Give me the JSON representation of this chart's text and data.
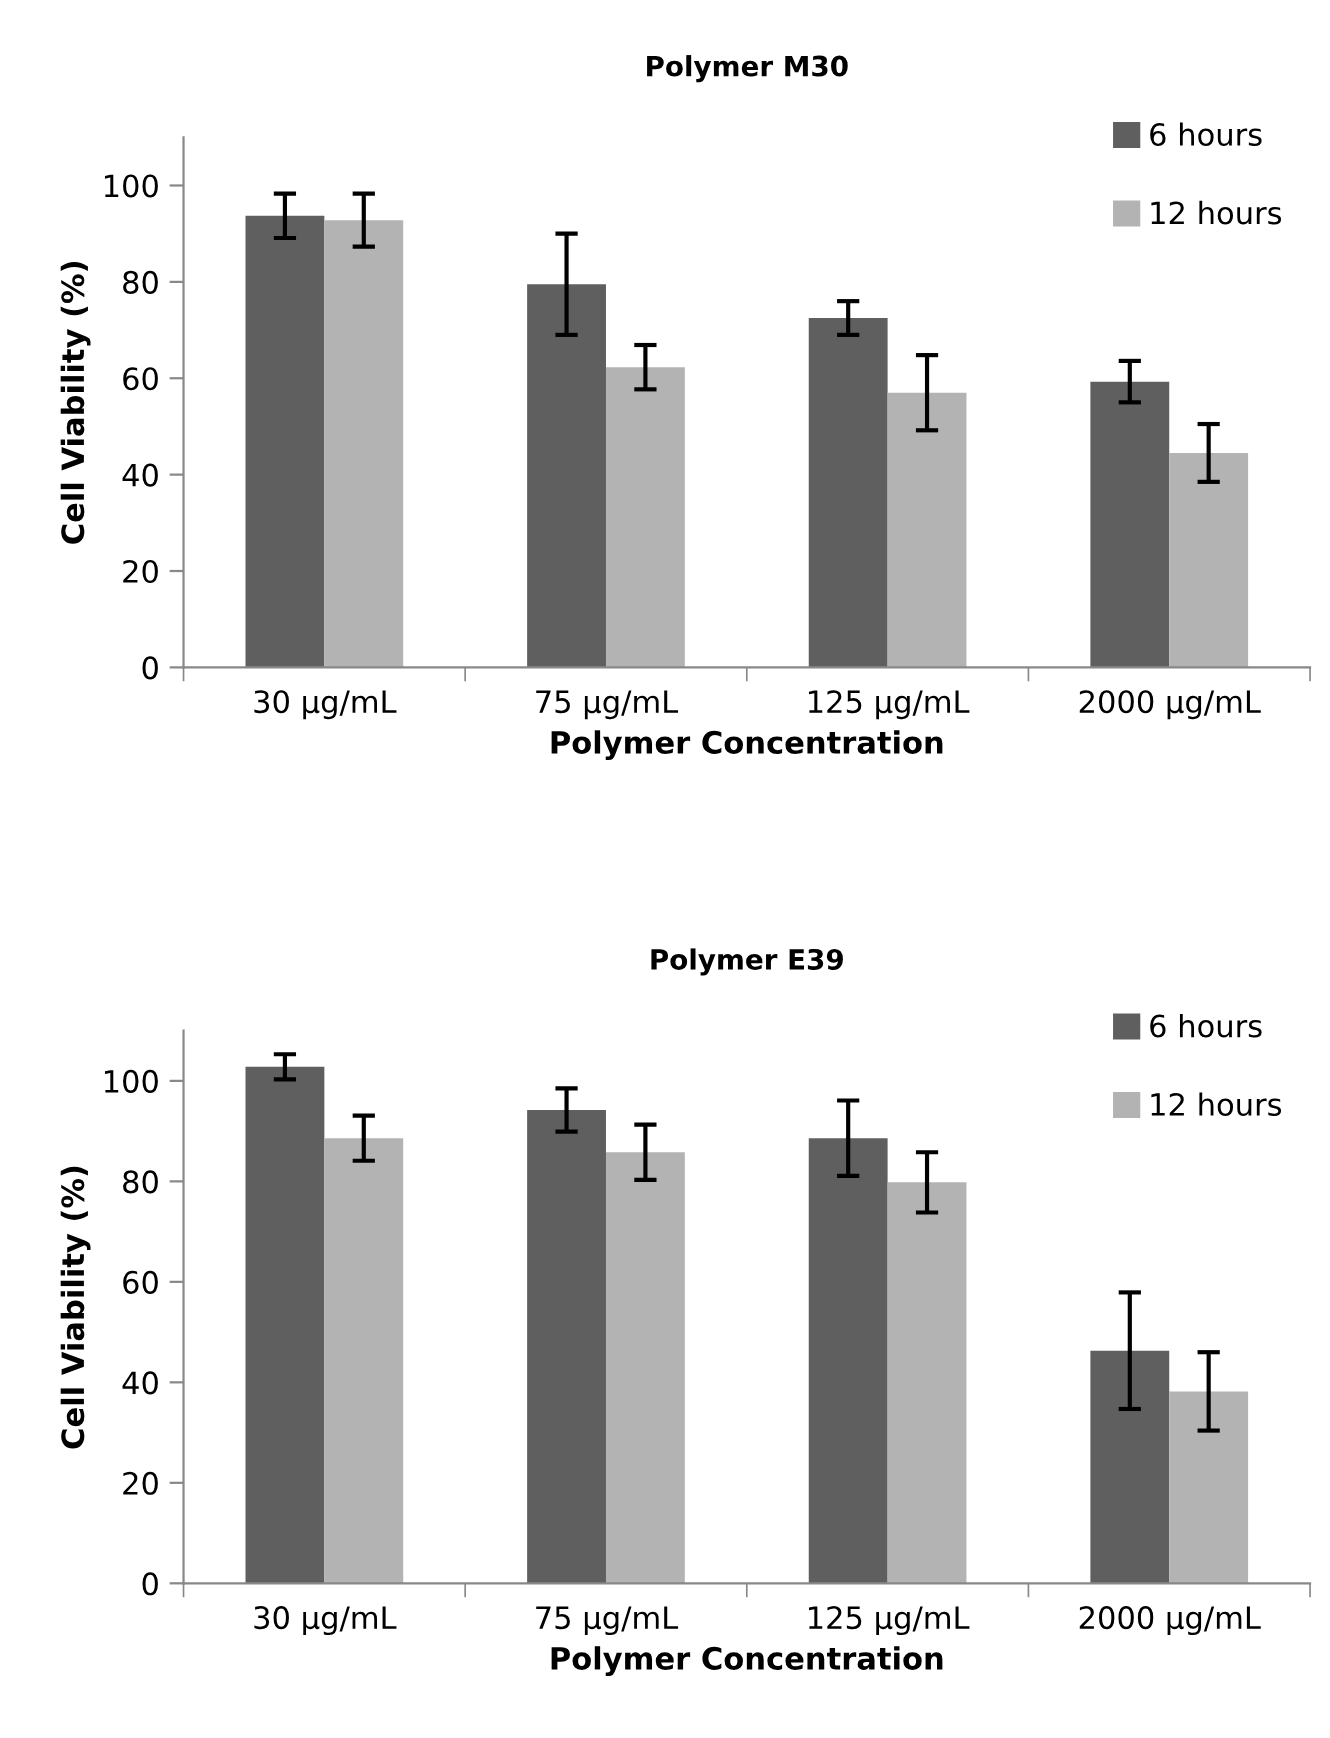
{
  "chart_data": [
    {
      "type": "bar",
      "title": "Polymer M30",
      "xlabel": "Polymer Concentration",
      "ylabel": "Cell Viability (%)",
      "categories": [
        "30 µg/mL",
        "75 µg/mL",
        "125 µg/mL",
        "2000 µg/mL"
      ],
      "series": [
        {
          "name": "6 hours",
          "color": "#5f5f5f",
          "values": [
            93.7,
            79.5,
            72.5,
            59.3
          ],
          "errors": [
            4.6,
            10.5,
            3.5,
            4.3
          ]
        },
        {
          "name": "12 hours",
          "color": "#b3b3b3",
          "values": [
            92.8,
            62.3,
            57.0,
            44.5
          ],
          "errors": [
            5.5,
            4.6,
            7.8,
            6.0
          ]
        }
      ],
      "ylim": [
        0,
        110
      ],
      "yticks": [
        0,
        20,
        40,
        60,
        80,
        100
      ],
      "grid": false,
      "legend": "top right"
    },
    {
      "type": "bar",
      "title": "Polymer E39",
      "xlabel": "Polymer Concentration",
      "ylabel": "Cell Viability (%)",
      "categories": [
        "30 µg/mL",
        "75 µg/mL",
        "125 µg/mL",
        "2000 µg/mL"
      ],
      "series": [
        {
          "name": "6 hours",
          "color": "#5f5f5f",
          "values": [
            102.8,
            94.2,
            88.6,
            46.3
          ],
          "errors": [
            2.5,
            4.3,
            7.5,
            11.6
          ]
        },
        {
          "name": "12 hours",
          "color": "#b3b3b3",
          "values": [
            88.6,
            85.8,
            79.8,
            38.2
          ],
          "errors": [
            4.5,
            5.5,
            6.0,
            7.8
          ]
        }
      ],
      "ylim": [
        0,
        110
      ],
      "yticks": [
        0,
        20,
        40,
        60,
        80,
        100
      ],
      "grid": false,
      "legend": "top right"
    }
  ]
}
